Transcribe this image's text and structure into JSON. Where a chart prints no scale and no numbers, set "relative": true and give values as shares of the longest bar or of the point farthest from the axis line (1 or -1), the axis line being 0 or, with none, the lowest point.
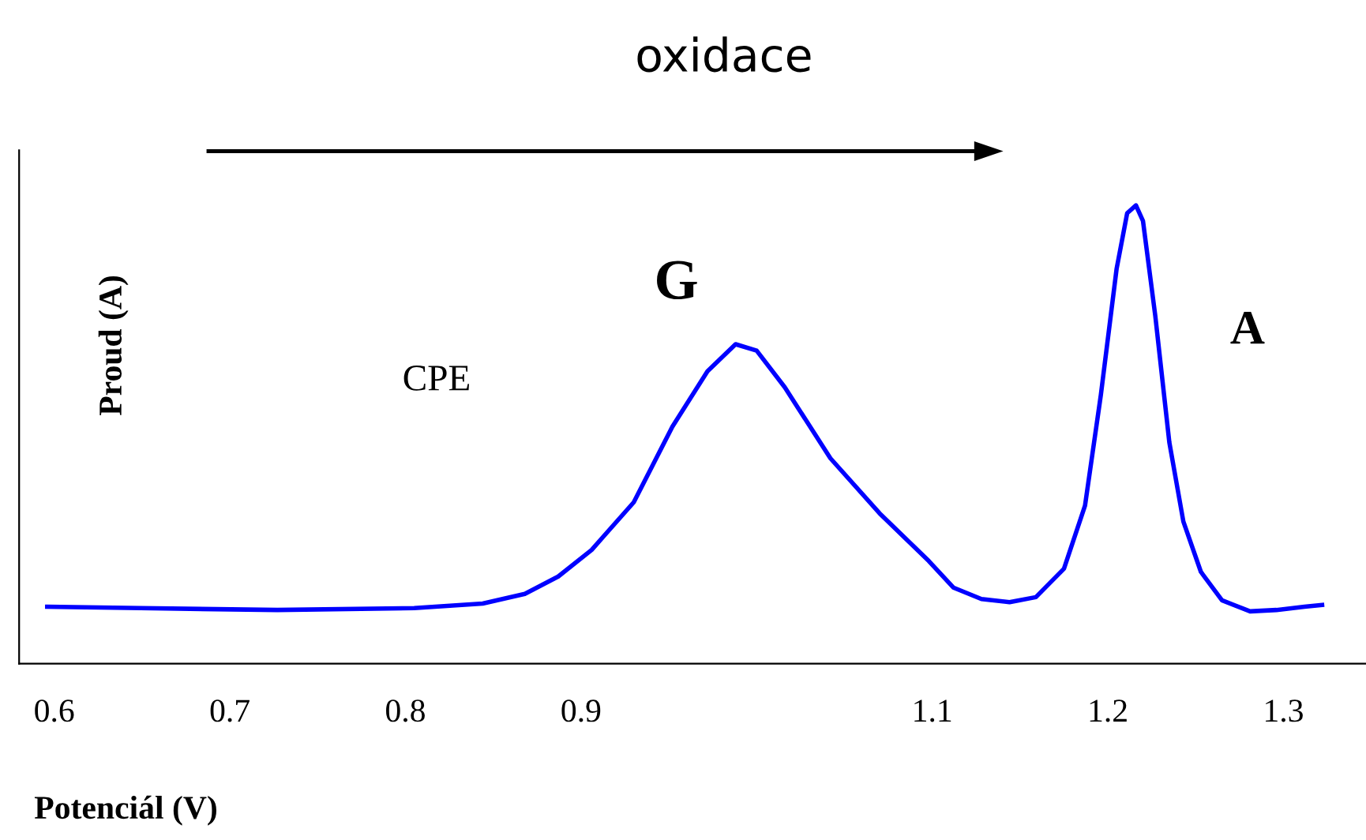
{
  "chart_data": {
    "type": "line",
    "title": "oxidace",
    "xlabel": "Potenciál (V)",
    "ylabel": "Proud (A)",
    "annotations": [
      "CPE",
      {
        "text": "G",
        "x": 0.988,
        "y": 0.697
      },
      "A"
    ],
    "relative": true,
    "tick_labels": "x",
    "grid": false,
    "legend": false,
    "marker": "none",
    "line_style": "solid",
    "xlim": [
      0.58,
      1.347
    ],
    "xticks": [
      0.6,
      0.7,
      0.8,
      0.9,
      1.1,
      1.2,
      1.3
    ],
    "series": [
      {
        "color": "#0000ff",
        "x": [
          0.596,
          0.649,
          0.727,
          0.805,
          0.844,
          0.868,
          0.887,
          0.906,
          0.93,
          0.952,
          0.972,
          0.988,
          1.0,
          1.016,
          1.042,
          1.07,
          1.098,
          1.112,
          1.128,
          1.144,
          1.159,
          1.175,
          1.187,
          1.196,
          1.205,
          1.211,
          1.216,
          1.22,
          1.227,
          1.235,
          1.243,
          1.253,
          1.265,
          1.281,
          1.296,
          1.312,
          1.322
        ],
        "values": [
          0.124,
          0.121,
          0.117,
          0.121,
          0.131,
          0.152,
          0.19,
          0.248,
          0.352,
          0.517,
          0.638,
          0.697,
          0.683,
          0.603,
          0.448,
          0.328,
          0.224,
          0.166,
          0.141,
          0.134,
          0.145,
          0.207,
          0.345,
          0.586,
          0.862,
          0.983,
          1.0,
          0.966,
          0.759,
          0.483,
          0.31,
          0.2,
          0.138,
          0.114,
          0.117,
          0.124,
          0.128
        ]
      }
    ]
  }
}
